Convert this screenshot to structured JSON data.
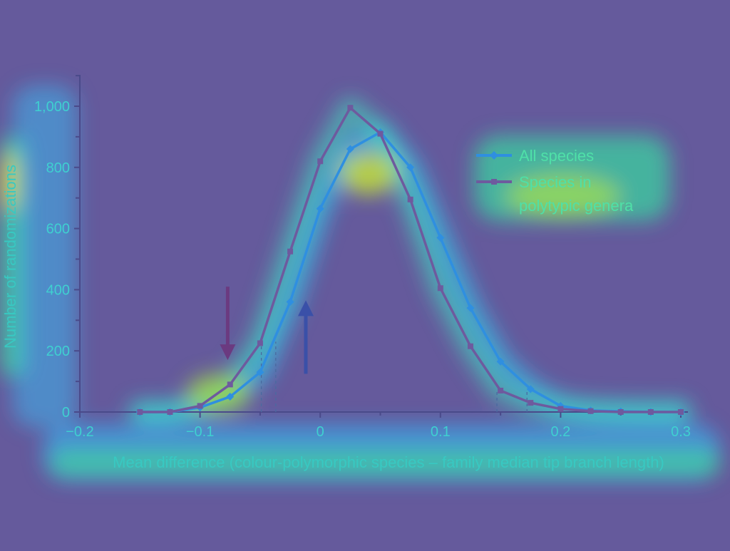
{
  "chart_data": {
    "type": "line",
    "title": "",
    "xlabel": "Mean difference (colour-polymorphic species – family median tip branch length)",
    "ylabel": "Number of randomizations",
    "xlim": [
      -0.2,
      0.3
    ],
    "ylim": [
      0,
      1000
    ],
    "x_ticks": [
      {
        "value": -0.2,
        "label": "−0.2"
      },
      {
        "value": -0.1,
        "label": "−0.1"
      },
      {
        "value": 0,
        "label": "0"
      },
      {
        "value": 0.1,
        "label": "0.1"
      },
      {
        "value": 0.2,
        "label": "0.2"
      },
      {
        "value": 0.3,
        "label": "0.3"
      }
    ],
    "y_ticks": [
      {
        "value": 0,
        "label": "0"
      },
      {
        "value": 200,
        "label": "200"
      },
      {
        "value": 400,
        "label": "400"
      },
      {
        "value": 600,
        "label": "600"
      },
      {
        "value": 800,
        "label": "800"
      },
      {
        "value": 1000,
        "label": "1,000"
      }
    ],
    "legend": {
      "position": "top-right"
    },
    "series": [
      {
        "name": "All species",
        "marker": "diamond",
        "color": "#2f8fe0",
        "x": [
          -0.15,
          -0.125,
          -0.1,
          -0.075,
          -0.05,
          -0.025,
          0,
          0.025,
          0.05,
          0.075,
          0.1,
          0.125,
          0.15,
          0.175,
          0.2,
          0.225,
          0.25,
          0.275,
          0.3
        ],
        "y": [
          0,
          0,
          15,
          50,
          130,
          360,
          665,
          860,
          915,
          800,
          570,
          340,
          165,
          75,
          20,
          5,
          2,
          0,
          0
        ]
      },
      {
        "name": "Species in polytypic genera",
        "marker": "square",
        "color": "#6e5a9e",
        "x": [
          -0.15,
          -0.125,
          -0.1,
          -0.075,
          -0.05,
          -0.025,
          0,
          0.025,
          0.05,
          0.075,
          0.1,
          0.125,
          0.15,
          0.175,
          0.2,
          0.225,
          0.25,
          0.275,
          0.3
        ],
        "y": [
          0,
          0,
          20,
          90,
          225,
          525,
          820,
          995,
          910,
          695,
          405,
          215,
          70,
          30,
          10,
          3,
          0,
          0,
          0
        ]
      }
    ],
    "annotations": [
      {
        "type": "arrow",
        "direction": "down",
        "x": -0.077,
        "y_from": 410,
        "y_to": 170,
        "color": "#6b3a80"
      },
      {
        "type": "arrow",
        "direction": "up",
        "x": -0.012,
        "y_from": 125,
        "y_to": 365,
        "color": "#3a50a8"
      },
      {
        "type": "dashed-line",
        "x": -0.049,
        "y_to": 225
      },
      {
        "type": "dashed-line",
        "x": -0.037,
        "y_to": 230
      },
      {
        "type": "dashed-line",
        "x": 0.147,
        "y_to": 70
      },
      {
        "type": "dashed-line",
        "x": 0.172,
        "y_to": 75
      }
    ]
  }
}
